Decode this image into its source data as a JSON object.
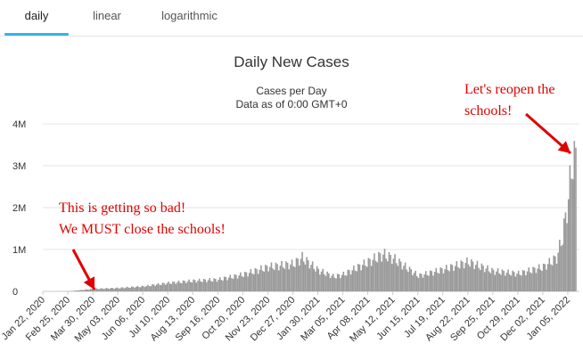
{
  "tabs": [
    {
      "label": "daily",
      "active": true
    },
    {
      "label": "linear",
      "active": false
    },
    {
      "label": "logarithmic",
      "active": false
    }
  ],
  "colors": {
    "accent": "#33b5e5",
    "bars": "#999999",
    "annotation": "#e00000"
  },
  "chart_data": {
    "type": "bar",
    "title": "Daily New Cases",
    "subtitle": "Cases per Day",
    "subtitle2": "Data as of 0:00 GMT+0",
    "xlabel": "",
    "ylabel": "",
    "ylim": [
      0,
      4000000
    ],
    "ytick_labels": [
      "0",
      "1M",
      "2M",
      "3M",
      "4M"
    ],
    "ytick_values": [
      0,
      1000000,
      2000000,
      3000000,
      4000000
    ],
    "grid": true,
    "x_start": "Jan 22, 2020",
    "x_end": "Jan 16, 2022",
    "xtick_labels": [
      "Jan 22, 2020",
      "Feb 25, 2020",
      "Mar 30, 2020",
      "May 03, 2020",
      "Jun 06, 2020",
      "Jul 10, 2020",
      "Aug 13, 2020",
      "Sep 16, 2020",
      "Oct 20, 2020",
      "Nov 23, 2020",
      "Dec 27, 2020",
      "Jan 30, 2021",
      "Mar 05, 2021",
      "Apr 08, 2021",
      "May 12, 2021",
      "Jun 15, 2021",
      "Jul 19, 2021",
      "Aug 22, 2021",
      "Sep 25, 2021",
      "Oct 29, 2021",
      "Dec 02, 2021",
      "Jan 05, 2022"
    ],
    "series": [
      {
        "values": [
          {
            "x": "Jan 22, 2020",
            "y": 0
          },
          {
            "x": "Feb 25, 2020",
            "y": 2000
          },
          {
            "x": "Mar 30, 2020",
            "y": 60000
          },
          {
            "x": "May 03, 2020",
            "y": 80000
          },
          {
            "x": "Jun 06, 2020",
            "y": 120000
          },
          {
            "x": "Jul 10, 2020",
            "y": 200000
          },
          {
            "x": "Aug 13, 2020",
            "y": 250000
          },
          {
            "x": "Sep 16, 2020",
            "y": 280000
          },
          {
            "x": "Oct 20, 2020",
            "y": 400000
          },
          {
            "x": "Nov 23, 2020",
            "y": 580000
          },
          {
            "x": "Dec 27, 2020",
            "y": 650000
          },
          {
            "x": "Jan 08, 2021",
            "y": 800000
          },
          {
            "x": "Jan 30, 2021",
            "y": 500000
          },
          {
            "x": "Feb 20, 2021",
            "y": 350000
          },
          {
            "x": "Mar 05, 2021",
            "y": 400000
          },
          {
            "x": "Apr 08, 2021",
            "y": 700000
          },
          {
            "x": "Apr 28, 2021",
            "y": 880000
          },
          {
            "x": "May 12, 2021",
            "y": 780000
          },
          {
            "x": "Jun 15, 2021",
            "y": 370000
          },
          {
            "x": "Jul 19, 2021",
            "y": 520000
          },
          {
            "x": "Aug 22, 2021",
            "y": 700000
          },
          {
            "x": "Sep 25, 2021",
            "y": 480000
          },
          {
            "x": "Oct 29, 2021",
            "y": 420000
          },
          {
            "x": "Dec 02, 2021",
            "y": 580000
          },
          {
            "x": "Dec 20, 2021",
            "y": 800000
          },
          {
            "x": "Dec 28, 2021",
            "y": 1300000
          },
          {
            "x": "Jan 05, 2022",
            "y": 2200000
          },
          {
            "x": "Jan 10, 2022",
            "y": 3100000
          },
          {
            "x": "Jan 16, 2022",
            "y": 3200000
          }
        ]
      }
    ],
    "annotations": [
      {
        "lines": [
          "This is getting so bad!",
          "We MUST close the schools!"
        ],
        "points_to": "Mar 30, 2020"
      },
      {
        "lines": [
          "Let's reopen the",
          "schools!"
        ],
        "points_to": "Jan 16, 2022"
      }
    ]
  }
}
